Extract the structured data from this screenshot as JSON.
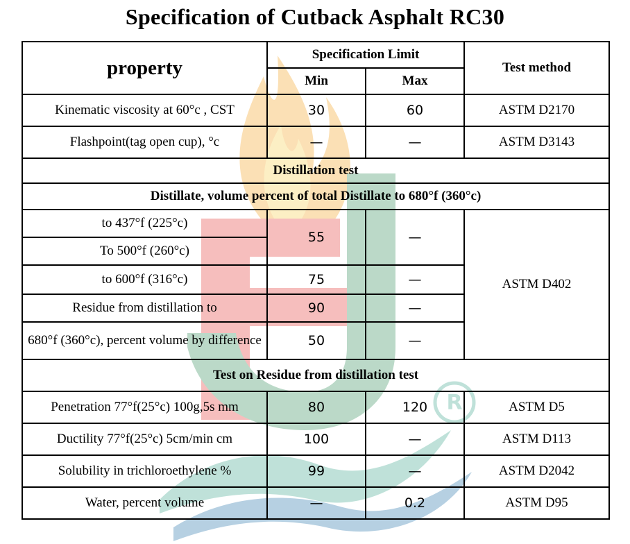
{
  "title": "Specification of Cutback Asphalt RC30",
  "watermark": {
    "colors": {
      "flame": "#f4a01c",
      "flame_inner": "#f6d04a",
      "red": "#e53935",
      "green": "#2e8b57",
      "teal": "#3aa58a",
      "blue": "#1f6fa8"
    },
    "icon": "company-logo-watermark",
    "mark": "®"
  },
  "header": {
    "property": "property",
    "spec_limit": "Specification Limit",
    "min": "Min",
    "max": "Max",
    "test_method": "Test method"
  },
  "rows": {
    "kinematic": {
      "property": "Kinematic viscosity at 60°c , CST",
      "min": "30",
      "max": "60",
      "method": "ASTM D2170"
    },
    "flashpoint": {
      "property": "Flashpoint(tag open cup), °c",
      "min": "—",
      "max": "—",
      "method": "ASTM D3143"
    },
    "distillation_heading": "Distillation test",
    "distillate_heading": "Distillate, volume percent of total Distillate to 680°f (360°c)",
    "d437": {
      "property": "to 437°f (225°c)"
    },
    "d500": {
      "property": "To 500°f (260°c)"
    },
    "d437_500_min": "55",
    "d437_500_max": "—",
    "d600": {
      "property": "to 600°f (316°c)",
      "min": "75",
      "max": "—"
    },
    "distillation_method": "ASTM D402",
    "residue": {
      "property": "Residue from distillation to",
      "min": "90",
      "max": "—"
    },
    "r680": {
      "property": "680°f (360°c), percent volume by difference",
      "min": "50",
      "max": "—"
    },
    "residue_heading": "Test on Residue from distillation test",
    "penetration": {
      "property": "Penetration 77°f(25°c) 100g,5s mm",
      "min": "80",
      "max": "120",
      "method": "ASTM D5"
    },
    "ductility": {
      "property": "Ductility 77°f(25°c) 5cm/min cm",
      "min": "100",
      "max": "—",
      "method": "ASTM D113"
    },
    "solubility": {
      "property": "Solubility in trichloroethylene %",
      "min": "99",
      "max": "—",
      "method": "ASTM D2042"
    },
    "water": {
      "property": "Water, percent volume",
      "min": "—",
      "max": "0.2",
      "method": "ASTM D95"
    }
  }
}
